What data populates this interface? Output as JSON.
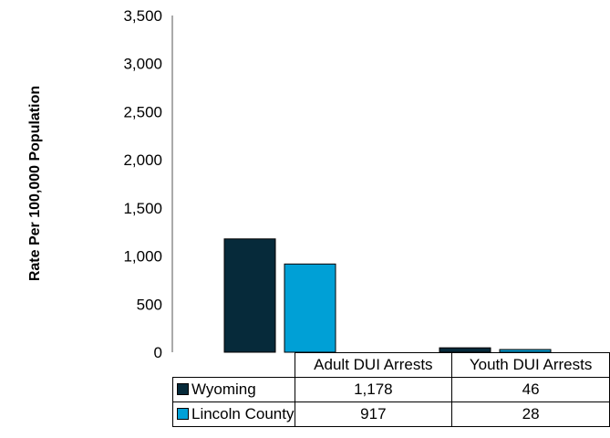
{
  "chart_data": {
    "type": "bar",
    "title": "",
    "xlabel": "",
    "ylabel": "Rate Per 100,000 Population",
    "ylim": [
      0,
      3500
    ],
    "yticks": [
      "0",
      "500",
      "1,000",
      "1,500",
      "2,000",
      "2,500",
      "3,000",
      "3,500"
    ],
    "ytick_values": [
      0,
      500,
      1000,
      1500,
      2000,
      2500,
      3000,
      3500
    ],
    "categories": [
      "Adult DUI Arrests",
      "Youth DUI Arrests"
    ],
    "series": [
      {
        "name": "Wyoming",
        "values": [
          1178,
          46
        ],
        "labels": [
          "1,178",
          "46"
        ],
        "color": "#062a3a"
      },
      {
        "name": "Lincoln County",
        "values": [
          917,
          28
        ],
        "labels": [
          "917",
          "28"
        ],
        "color": "#00a0d6"
      }
    ],
    "grid": false,
    "legend": "data-table"
  }
}
